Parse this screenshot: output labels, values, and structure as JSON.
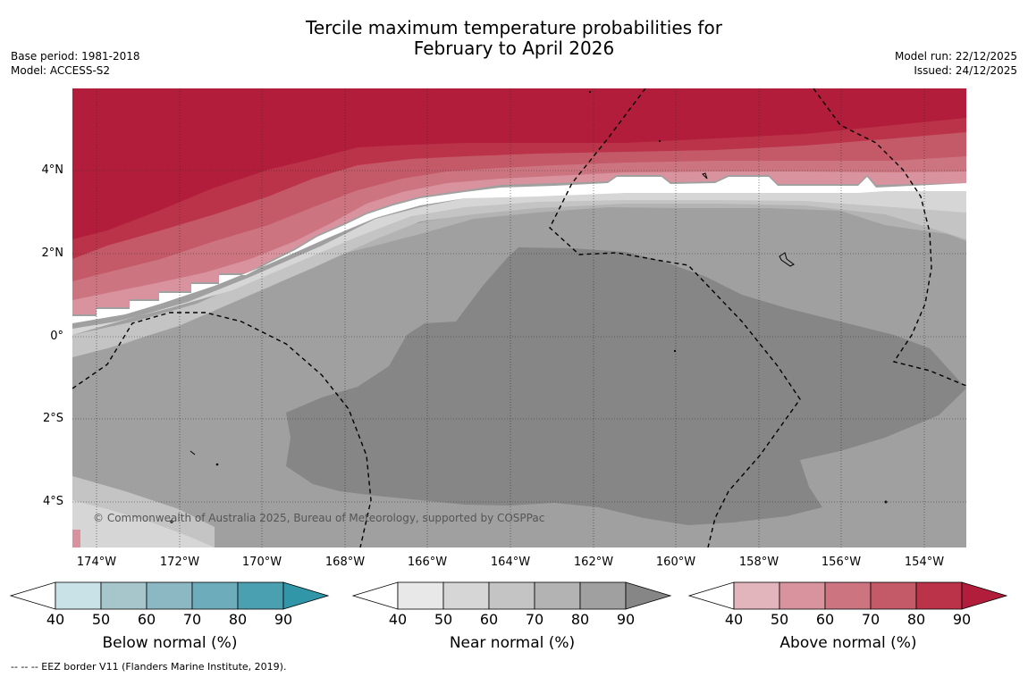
{
  "title_line1": "Tercile maximum temperature probabilities for",
  "title_line2": "February to April 2026",
  "base_period": "Base period: 1981-2018",
  "model": "Model: ACCESS-S2",
  "model_run": "Model run: 22/12/2025",
  "issued": "Issued: 24/12/2025",
  "copyright": "© Commonwealth of Australia 2025, Bureau of Meteorology, supported by COSPPac",
  "lat_labels": [
    "4°N",
    "2°N",
    "0°",
    "2°S",
    "4°S"
  ],
  "lon_labels": [
    "174°W",
    "172°W",
    "170°W",
    "168°W",
    "166°W",
    "164°W",
    "162°W",
    "160°W",
    "158°W",
    "156°W",
    "154°W"
  ],
  "colorbars": {
    "below": {
      "label": "Below normal (%)",
      "ticks": [
        "40",
        "50",
        "60",
        "70",
        "80",
        "90"
      ],
      "colors": [
        "#ffffff",
        "#c9e2e8",
        "#a6c6cb",
        "#8cb8c4",
        "#6dadbb",
        "#4a9fb0",
        "#3096a8"
      ]
    },
    "near": {
      "label": "Near normal (%)",
      "ticks": [
        "40",
        "50",
        "60",
        "70",
        "80",
        "90"
      ],
      "colors": [
        "#ffffff",
        "#e8e8e8",
        "#d6d6d6",
        "#c4c4c4",
        "#b3b3b3",
        "#a0a0a0",
        "#868686"
      ]
    },
    "above": {
      "label": "Above normal (%)",
      "ticks": [
        "40",
        "50",
        "60",
        "70",
        "80",
        "90"
      ],
      "colors": [
        "#ffffff",
        "#e2b5bd",
        "#d8939e",
        "#cc7580",
        "#c45a68",
        "#bb3349",
        "#b11d3b"
      ]
    }
  },
  "footer": "--  --  -- EEZ border V11 (Flanders Marine Institute, 2019)."
}
